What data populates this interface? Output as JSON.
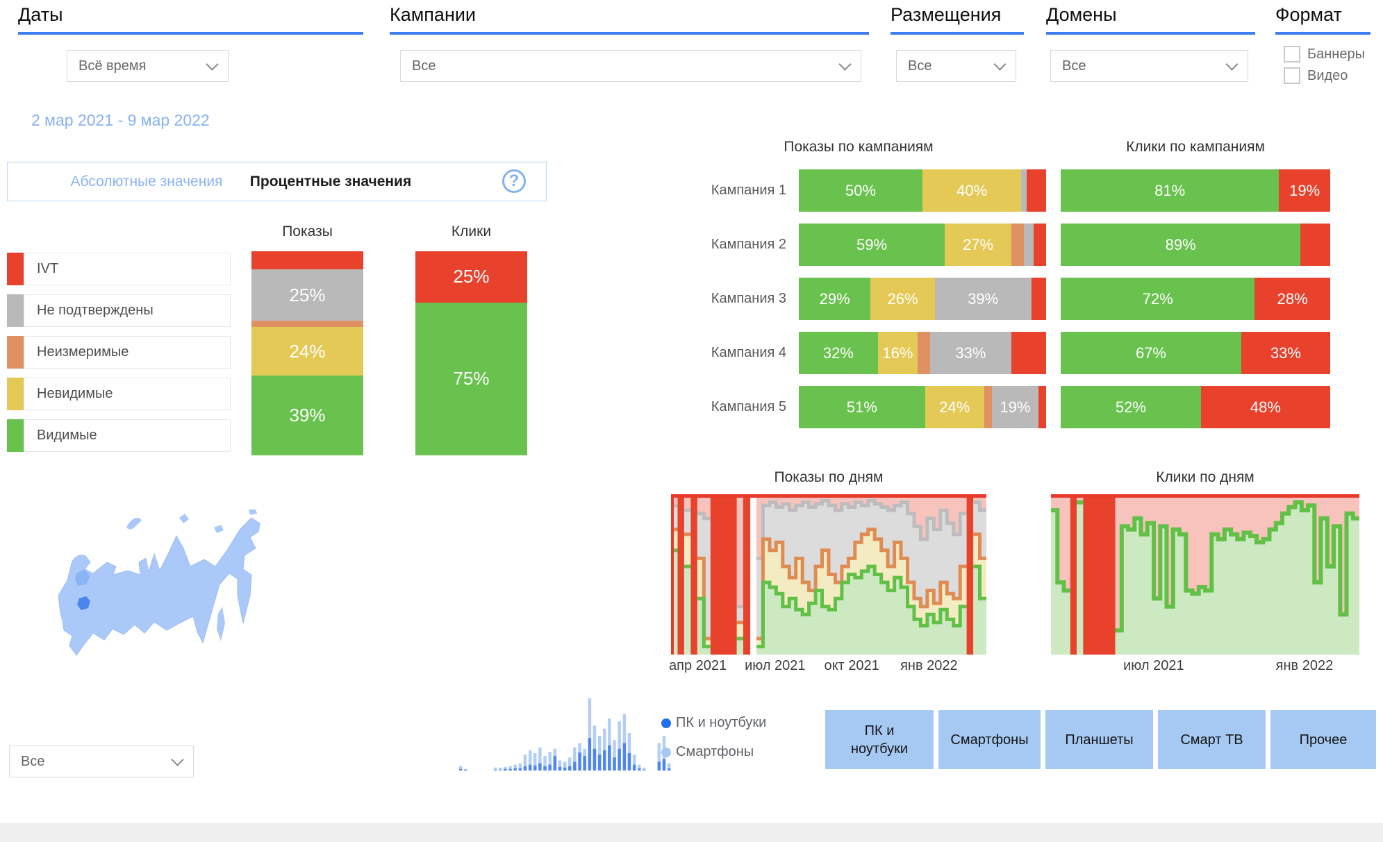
{
  "header": {
    "dates_label": "Даты",
    "dates_value": "Всё время",
    "campaigns_label": "Кампании",
    "campaigns_value": "Все",
    "placements_label": "Размещения",
    "placements_value": "Все",
    "domains_label": "Домены",
    "domains_value": "Все",
    "format_label": "Формат",
    "format_options": [
      "Баннеры",
      "Видео"
    ]
  },
  "date_range": "2 мар 2021 - 9 мар 2022",
  "toggle": {
    "absolute": "Абсолютные значения",
    "percent": "Процентные значения",
    "active": "percent",
    "help": "?"
  },
  "region_filter_value": "Все",
  "device_legend": [
    {
      "label": "ПК и ноутбуки",
      "color": "#1f6ff0"
    },
    {
      "label": "Смартфоны",
      "color": "#a6c9f3"
    }
  ],
  "device_buttons": [
    "ПК и ноутбуки",
    "Смартфоны",
    "Планшеты",
    "Смарт ТВ",
    "Прочее"
  ],
  "colors": {
    "ivt": "#e8412c",
    "unconfirmed": "#b9b9b9",
    "unmeasured": "#df9164",
    "invisible": "#e5c956",
    "visible": "#68c24d",
    "pink": "#f7c3bc",
    "pale_yellow": "#f3ebc1",
    "light_gray": "#dcdcdc",
    "light_green": "#cde9c2",
    "red_line": "#e8392a",
    "orange_line": "#df8c54",
    "gray_line": "#bdbdbd",
    "green_line": "#62c047",
    "accent_blue": "#3d7ff1",
    "light_blue_text": "#8ab3f5",
    "button_blue": "#a6c9f3",
    "map_fill": "#abc9f8",
    "map_region_dark": "#4a86ee",
    "map_region_mid": "#8cb4f4",
    "mini_light": "#b3cef5",
    "mini_dark": "#4f86ef"
  },
  "legend": [
    {
      "key": "ivt",
      "label": "IVT"
    },
    {
      "key": "unconfirmed",
      "label": "Не подтверждены"
    },
    {
      "key": "unmeasured",
      "label": "Неизмеримые"
    },
    {
      "key": "invisible",
      "label": "Невидимые"
    },
    {
      "key": "visible",
      "label": "Видимые"
    }
  ],
  "chart_data": [
    {
      "id": "totals_impressions",
      "type": "bar",
      "stacked": true,
      "orientation": "vertical",
      "title": "Показы",
      "segments_top_to_bottom": [
        {
          "key": "ivt",
          "value": 9,
          "label": ""
        },
        {
          "key": "unconfirmed",
          "value": 25,
          "label": "25%"
        },
        {
          "key": "unmeasured",
          "value": 3,
          "label": ""
        },
        {
          "key": "invisible",
          "value": 24,
          "label": "24%"
        },
        {
          "key": "visible",
          "value": 39,
          "label": "39%"
        }
      ]
    },
    {
      "id": "totals_clicks",
      "type": "bar",
      "stacked": true,
      "orientation": "vertical",
      "title": "Клики",
      "segments_top_to_bottom": [
        {
          "key": "ivt",
          "value": 25,
          "label": "25%"
        },
        {
          "key": "visible",
          "value": 75,
          "label": "75%"
        }
      ]
    },
    {
      "id": "campaigns_impressions",
      "type": "bar",
      "stacked": true,
      "orientation": "horizontal",
      "title": "Показы по кампаниям",
      "rows": [
        {
          "label": "Кампания 1",
          "segments": [
            {
              "key": "visible",
              "value": 50,
              "label": "50%"
            },
            {
              "key": "invisible",
              "value": 40,
              "label": "40%"
            },
            {
              "key": "unconfirmed",
              "value": 2,
              "label": ""
            },
            {
              "key": "ivt",
              "value": 8,
              "label": ""
            }
          ]
        },
        {
          "label": "Кампания 2",
          "segments": [
            {
              "key": "visible",
              "value": 59,
              "label": "59%"
            },
            {
              "key": "invisible",
              "value": 27,
              "label": "27%"
            },
            {
              "key": "unmeasured",
              "value": 5,
              "label": ""
            },
            {
              "key": "unconfirmed",
              "value": 4,
              "label": ""
            },
            {
              "key": "ivt",
              "value": 5,
              "label": ""
            }
          ]
        },
        {
          "label": "Кампания 3",
          "segments": [
            {
              "key": "visible",
              "value": 29,
              "label": "29%"
            },
            {
              "key": "invisible",
              "value": 26,
              "label": "26%"
            },
            {
              "key": "unconfirmed",
              "value": 39,
              "label": "39%"
            },
            {
              "key": "ivt",
              "value": 6,
              "label": ""
            }
          ]
        },
        {
          "label": "Кампания 4",
          "segments": [
            {
              "key": "visible",
              "value": 32,
              "label": "32%"
            },
            {
              "key": "invisible",
              "value": 16,
              "label": "16%"
            },
            {
              "key": "unmeasured",
              "value": 5,
              "label": ""
            },
            {
              "key": "unconfirmed",
              "value": 33,
              "label": "33%"
            },
            {
              "key": "ivt",
              "value": 14,
              "label": ""
            }
          ]
        },
        {
          "label": "Кампания 5",
          "segments": [
            {
              "key": "visible",
              "value": 51,
              "label": "51%"
            },
            {
              "key": "invisible",
              "value": 24,
              "label": "24%"
            },
            {
              "key": "unmeasured",
              "value": 3,
              "label": ""
            },
            {
              "key": "unconfirmed",
              "value": 19,
              "label": "19%"
            },
            {
              "key": "ivt",
              "value": 3,
              "label": ""
            }
          ]
        }
      ]
    },
    {
      "id": "campaigns_clicks",
      "type": "bar",
      "stacked": true,
      "orientation": "horizontal",
      "title": "Клики по кампаниям",
      "rows": [
        {
          "segments": [
            {
              "key": "visible",
              "value": 81,
              "label": "81%"
            },
            {
              "key": "ivt",
              "value": 19,
              "label": "19%"
            }
          ]
        },
        {
          "segments": [
            {
              "key": "visible",
              "value": 89,
              "label": "89%"
            },
            {
              "key": "ivt",
              "value": 11,
              "label": ""
            }
          ]
        },
        {
          "segments": [
            {
              "key": "visible",
              "value": 72,
              "label": "72%"
            },
            {
              "key": "ivt",
              "value": 28,
              "label": "28%"
            }
          ]
        },
        {
          "segments": [
            {
              "key": "visible",
              "value": 67,
              "label": "67%"
            },
            {
              "key": "ivt",
              "value": 33,
              "label": "33%"
            }
          ]
        },
        {
          "segments": [
            {
              "key": "visible",
              "value": 52,
              "label": "52%"
            },
            {
              "key": "ivt",
              "value": 48,
              "label": "48%"
            }
          ]
        }
      ]
    },
    {
      "id": "impressions_by_day",
      "type": "area",
      "title": "Показы по дням",
      "ymax": 100,
      "x_ticks": [
        {
          "label": "апр 2021",
          "pos": 0.085
        },
        {
          "label": "июл 2021",
          "pos": 0.33
        },
        {
          "label": "окт 2021",
          "pos": 0.573
        },
        {
          "label": "янв 2022",
          "pos": 0.818
        }
      ],
      "status": [
        "n",
        "r",
        "n",
        "r",
        "n",
        "n",
        "r",
        "r",
        "r",
        "r",
        "n",
        "r",
        "x",
        "n",
        "n",
        "n",
        "n",
        "n",
        "n",
        "n",
        "n",
        "n",
        "n",
        "n",
        "n",
        "n",
        "n",
        "n",
        "n",
        "n",
        "n",
        "n",
        "n",
        "n",
        "n",
        "n",
        "n",
        "n",
        "n",
        "n",
        "n",
        "n",
        "n",
        "n",
        "n",
        "r",
        "n",
        "n"
      ],
      "series": {
        "green": [
          65,
          0,
          55,
          0,
          35,
          5,
          0,
          0,
          0,
          0,
          10,
          0,
          0,
          5,
          45,
          42,
          38,
          30,
          35,
          28,
          25,
          32,
          40,
          30,
          28,
          35,
          45,
          50,
          48,
          52,
          55,
          50,
          45,
          40,
          48,
          42,
          30,
          22,
          18,
          25,
          20,
          28,
          22,
          18,
          30,
          0,
          55,
          35
        ],
        "orange": [
          78,
          0,
          75,
          0,
          60,
          10,
          0,
          0,
          0,
          0,
          20,
          0,
          0,
          10,
          72,
          65,
          70,
          55,
          48,
          60,
          45,
          40,
          55,
          65,
          50,
          45,
          55,
          60,
          70,
          75,
          78,
          72,
          65,
          55,
          70,
          60,
          45,
          35,
          30,
          40,
          32,
          45,
          38,
          35,
          55,
          0,
          75,
          60
        ],
        "gray": [
          93,
          0,
          90,
          0,
          88,
          85,
          0,
          0,
          0,
          0,
          30,
          0,
          0,
          60,
          93,
          95,
          92,
          94,
          90,
          93,
          95,
          92,
          94,
          96,
          93,
          90,
          94,
          92,
          95,
          93,
          96,
          94,
          92,
          90,
          93,
          95,
          88,
          80,
          72,
          85,
          78,
          90,
          82,
          75,
          88,
          0,
          95,
          90
        ]
      }
    },
    {
      "id": "clicks_by_day",
      "type": "area",
      "title": "Клики по дням",
      "ymax": 100,
      "x_ticks": [
        {
          "label": "июл 2021",
          "pos": 0.333
        },
        {
          "label": "янв 2022",
          "pos": 0.822
        }
      ],
      "status": [
        "n",
        "n",
        "n",
        "r",
        "n",
        "r",
        "r",
        "r",
        "r",
        "r",
        "n",
        "n",
        "n",
        "n",
        "n",
        "n",
        "n",
        "n",
        "n",
        "n",
        "n",
        "n",
        "n",
        "n",
        "n",
        "n",
        "n",
        "n",
        "n",
        "n",
        "n",
        "n",
        "n",
        "n",
        "n",
        "n",
        "n",
        "n",
        "n",
        "n",
        "n",
        "n",
        "n",
        "n",
        "n",
        "n",
        "n",
        "n"
      ],
      "series": {
        "green": [
          90,
          45,
          40,
          0,
          95,
          0,
          0,
          0,
          0,
          0,
          15,
          80,
          78,
          85,
          75,
          82,
          35,
          80,
          30,
          78,
          75,
          40,
          38,
          42,
          40,
          75,
          72,
          78,
          75,
          72,
          76,
          74,
          70,
          72,
          78,
          82,
          88,
          92,
          95,
          90,
          93,
          45,
          85,
          55,
          80,
          25,
          88,
          85
        ]
      }
    },
    {
      "id": "device_timeline",
      "type": "bar",
      "series": [
        {
          "name": "light",
          "values": [
            0,
            0,
            0,
            0,
            0,
            0,
            0,
            0,
            0,
            0,
            0,
            0,
            0,
            6,
            2,
            0,
            0,
            0,
            0,
            0,
            4,
            4,
            5,
            6,
            8,
            10,
            22,
            28,
            24,
            32,
            20,
            26,
            30,
            14,
            12,
            18,
            32,
            38,
            30,
            100,
            62,
            48,
            58,
            72,
            42,
            68,
            78,
            52,
            22,
            8,
            4,
            0,
            0,
            38,
            48,
            10
          ]
        },
        {
          "name": "dark",
          "values": [
            0,
            0,
            0,
            0,
            0,
            0,
            0,
            0,
            0,
            0,
            0,
            0,
            0,
            2,
            1,
            0,
            0,
            0,
            0,
            0,
            1,
            1,
            2,
            2,
            3,
            3,
            6,
            8,
            7,
            10,
            6,
            8,
            20,
            5,
            4,
            6,
            12,
            25,
            20,
            45,
            30,
            22,
            28,
            35,
            18,
            30,
            38,
            24,
            8,
            3,
            1,
            0,
            0,
            12,
            16,
            3
          ]
        }
      ]
    }
  ]
}
